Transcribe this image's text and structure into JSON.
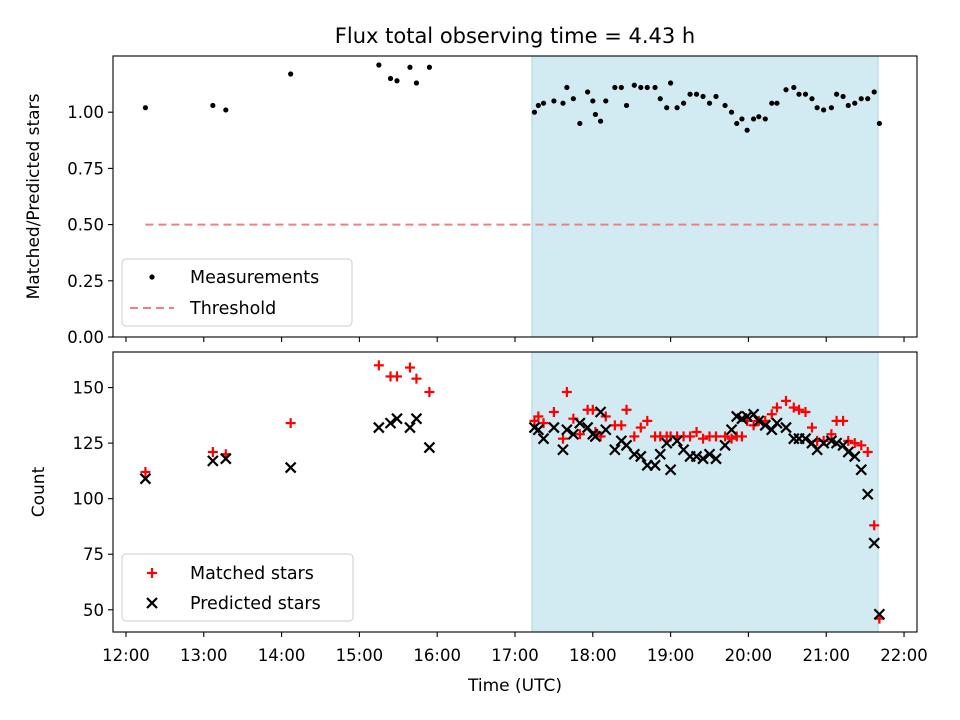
{
  "title": "Flux total observing time = 4.43 h",
  "colors": {
    "measurement": "#000000",
    "threshold": "#f08080",
    "matched": "#ff0000",
    "predicted": "#000000",
    "span": "#add8e6"
  },
  "chart_data": [
    {
      "type": "scatter",
      "panel": "top",
      "title": "Flux total observing time = 4.43 h",
      "xlabel": "",
      "ylabel": "Matched/Predicted stars",
      "xlim": [
        "11:50",
        "22:10"
      ],
      "ylim": [
        0.0,
        1.25
      ],
      "yticks": [
        "0.00",
        "0.25",
        "0.50",
        "0.75",
        "1.00"
      ],
      "grid": false,
      "legend_position": "lower-left",
      "highlight_span": [
        "17:13",
        "21:40"
      ],
      "threshold": {
        "name": "Threshold",
        "y": 0.5,
        "x_range": [
          "12:15",
          "21:40"
        ],
        "style": "dashed"
      },
      "series": [
        {
          "name": "Measurements",
          "marker": "dot",
          "points": [
            [
              "12:15",
              1.02
            ],
            [
              "13:07",
              1.03
            ],
            [
              "13:17",
              1.01
            ],
            [
              "14:07",
              1.17
            ],
            [
              "15:15",
              1.21
            ],
            [
              "15:24",
              1.15
            ],
            [
              "15:29",
              1.14
            ],
            [
              "15:39",
              1.2
            ],
            [
              "15:44",
              1.13
            ],
            [
              "15:54",
              1.2
            ],
            [
              "17:15",
              1.0
            ],
            [
              "17:18",
              1.03
            ],
            [
              "17:22",
              1.04
            ],
            [
              "17:30",
              1.05
            ],
            [
              "17:37",
              1.04
            ],
            [
              "17:40",
              1.11
            ],
            [
              "17:45",
              1.06
            ],
            [
              "17:50",
              0.95
            ],
            [
              "17:56",
              1.09
            ],
            [
              "18:00",
              1.05
            ],
            [
              "18:02",
              0.99
            ],
            [
              "18:06",
              0.96
            ],
            [
              "18:10",
              1.05
            ],
            [
              "18:17",
              1.11
            ],
            [
              "18:22",
              1.11
            ],
            [
              "18:26",
              1.03
            ],
            [
              "18:32",
              1.12
            ],
            [
              "18:37",
              1.11
            ],
            [
              "18:42",
              1.11
            ],
            [
              "18:48",
              1.11
            ],
            [
              "18:52",
              1.06
            ],
            [
              "18:57",
              1.02
            ],
            [
              "19:00",
              1.13
            ],
            [
              "19:05",
              1.02
            ],
            [
              "19:10",
              1.04
            ],
            [
              "19:15",
              1.08
            ],
            [
              "19:20",
              1.08
            ],
            [
              "19:25",
              1.07
            ],
            [
              "19:30",
              1.04
            ],
            [
              "19:35",
              1.07
            ],
            [
              "19:42",
              1.03
            ],
            [
              "19:47",
              1.0
            ],
            [
              "19:51",
              0.95
            ],
            [
              "19:55",
              0.97
            ],
            [
              "19:59",
              0.92
            ],
            [
              "20:04",
              0.97
            ],
            [
              "20:08",
              0.98
            ],
            [
              "20:13",
              0.97
            ],
            [
              "20:18",
              1.04
            ],
            [
              "20:22",
              1.04
            ],
            [
              "20:29",
              1.1
            ],
            [
              "20:35",
              1.11
            ],
            [
              "20:39",
              1.08
            ],
            [
              "20:44",
              1.08
            ],
            [
              "20:49",
              1.06
            ],
            [
              "20:53",
              1.02
            ],
            [
              "20:58",
              1.01
            ],
            [
              "21:04",
              1.02
            ],
            [
              "21:08",
              1.08
            ],
            [
              "21:13",
              1.07
            ],
            [
              "21:17",
              1.03
            ],
            [
              "21:22",
              1.04
            ],
            [
              "21:27",
              1.06
            ],
            [
              "21:32",
              1.06
            ],
            [
              "21:37",
              1.09
            ],
            [
              "21:41",
              0.95
            ]
          ]
        }
      ]
    },
    {
      "type": "scatter",
      "panel": "bottom",
      "xlabel": "Time (UTC)",
      "ylabel": "Count",
      "xlim": [
        "11:50",
        "22:10"
      ],
      "ylim": [
        40,
        166
      ],
      "xticks": [
        "12:00",
        "13:00",
        "14:00",
        "15:00",
        "16:00",
        "17:00",
        "18:00",
        "19:00",
        "20:00",
        "21:00",
        "22:00"
      ],
      "yticks": [
        "50",
        "75",
        "100",
        "125",
        "150"
      ],
      "grid": false,
      "legend_position": "lower-left",
      "highlight_span": [
        "17:13",
        "21:40"
      ],
      "series": [
        {
          "name": "Matched stars",
          "marker": "plus",
          "points": [
            [
              "12:15",
              112
            ],
            [
              "13:07",
              121
            ],
            [
              "13:17",
              120
            ],
            [
              "14:07",
              134
            ],
            [
              "15:15",
              160
            ],
            [
              "15:24",
              155
            ],
            [
              "15:29",
              155
            ],
            [
              "15:39",
              159
            ],
            [
              "15:44",
              154
            ],
            [
              "15:54",
              148
            ],
            [
              "17:15",
              135
            ],
            [
              "17:18",
              137
            ],
            [
              "17:22",
              134
            ],
            [
              "17:30",
              139
            ],
            [
              "17:37",
              127
            ],
            [
              "17:40",
              148
            ],
            [
              "17:45",
              136
            ],
            [
              "17:50",
              129
            ],
            [
              "17:56",
              140
            ],
            [
              "18:00",
              140
            ],
            [
              "18:02",
              130
            ],
            [
              "18:06",
              128
            ],
            [
              "18:10",
              137
            ],
            [
              "18:17",
              133
            ],
            [
              "18:22",
              133
            ],
            [
              "18:26",
              140
            ],
            [
              "18:32",
              128
            ],
            [
              "18:37",
              132
            ],
            [
              "18:42",
              135
            ],
            [
              "18:48",
              128
            ],
            [
              "18:52",
              128
            ],
            [
              "18:57",
              128
            ],
            [
              "19:00",
              128
            ],
            [
              "19:05",
              128
            ],
            [
              "19:10",
              128
            ],
            [
              "19:15",
              128
            ],
            [
              "19:20",
              130
            ],
            [
              "19:25",
              127
            ],
            [
              "19:30",
              128
            ],
            [
              "19:35",
              128
            ],
            [
              "19:42",
              128
            ],
            [
              "19:47",
              127
            ],
            [
              "19:51",
              128
            ],
            [
              "19:55",
              128
            ],
            [
              "19:59",
              135
            ],
            [
              "20:04",
              133
            ],
            [
              "20:08",
              135
            ],
            [
              "20:13",
              135
            ],
            [
              "20:18",
              138
            ],
            [
              "20:22",
              141
            ],
            [
              "20:29",
              144
            ],
            [
              "20:35",
              141
            ],
            [
              "20:39",
              140
            ],
            [
              "20:44",
              139
            ],
            [
              "20:49",
              132
            ],
            [
              "20:53",
              126
            ],
            [
              "20:58",
              126
            ],
            [
              "21:04",
              129
            ],
            [
              "21:08",
              135
            ],
            [
              "21:13",
              135
            ],
            [
              "21:17",
              126
            ],
            [
              "21:22",
              125
            ],
            [
              "21:27",
              124
            ],
            [
              "21:32",
              121
            ],
            [
              "21:37",
              88
            ],
            [
              "21:41",
              46
            ]
          ]
        },
        {
          "name": "Predicted stars",
          "marker": "x",
          "points": [
            [
              "12:15",
              109
            ],
            [
              "13:07",
              117
            ],
            [
              "13:17",
              118
            ],
            [
              "14:07",
              114
            ],
            [
              "15:15",
              132
            ],
            [
              "15:24",
              134
            ],
            [
              "15:29",
              136
            ],
            [
              "15:39",
              132
            ],
            [
              "15:44",
              136
            ],
            [
              "15:54",
              123
            ],
            [
              "17:15",
              132
            ],
            [
              "17:18",
              131
            ],
            [
              "17:22",
              127
            ],
            [
              "17:30",
              132
            ],
            [
              "17:37",
              122
            ],
            [
              "17:40",
              131
            ],
            [
              "17:45",
              129
            ],
            [
              "17:50",
              134
            ],
            [
              "17:56",
              132
            ],
            [
              "18:00",
              129
            ],
            [
              "18:02",
              128
            ],
            [
              "18:06",
              139
            ],
            [
              "18:10",
              131
            ],
            [
              "18:17",
              122
            ],
            [
              "18:22",
              126
            ],
            [
              "18:26",
              124
            ],
            [
              "18:32",
              120
            ],
            [
              "18:37",
              119
            ],
            [
              "18:42",
              115
            ],
            [
              "18:48",
              115
            ],
            [
              "18:52",
              120
            ],
            [
              "18:57",
              125
            ],
            [
              "19:00",
              113
            ],
            [
              "19:05",
              126
            ],
            [
              "19:10",
              122
            ],
            [
              "19:15",
              119
            ],
            [
              "19:20",
              119
            ],
            [
              "19:25",
              118
            ],
            [
              "19:30",
              120
            ],
            [
              "19:35",
              118
            ],
            [
              "19:42",
              124
            ],
            [
              "19:47",
              131
            ],
            [
              "19:51",
              137
            ],
            [
              "19:55",
              136
            ],
            [
              "19:59",
              137
            ],
            [
              "20:04",
              138
            ],
            [
              "20:08",
              135
            ],
            [
              "20:13",
              133
            ],
            [
              "20:18",
              131
            ],
            [
              "20:22",
              134
            ],
            [
              "20:29",
              132
            ],
            [
              "20:35",
              127
            ],
            [
              "20:39",
              127
            ],
            [
              "20:44",
              127
            ],
            [
              "20:49",
              125
            ],
            [
              "20:53",
              122
            ],
            [
              "20:58",
              125
            ],
            [
              "21:04",
              126
            ],
            [
              "21:08",
              125
            ],
            [
              "21:13",
              124
            ],
            [
              "21:17",
              121
            ],
            [
              "21:22",
              119
            ],
            [
              "21:27",
              113
            ],
            [
              "21:32",
              102
            ],
            [
              "21:37",
              80
            ],
            [
              "21:41",
              48
            ]
          ]
        }
      ]
    }
  ]
}
